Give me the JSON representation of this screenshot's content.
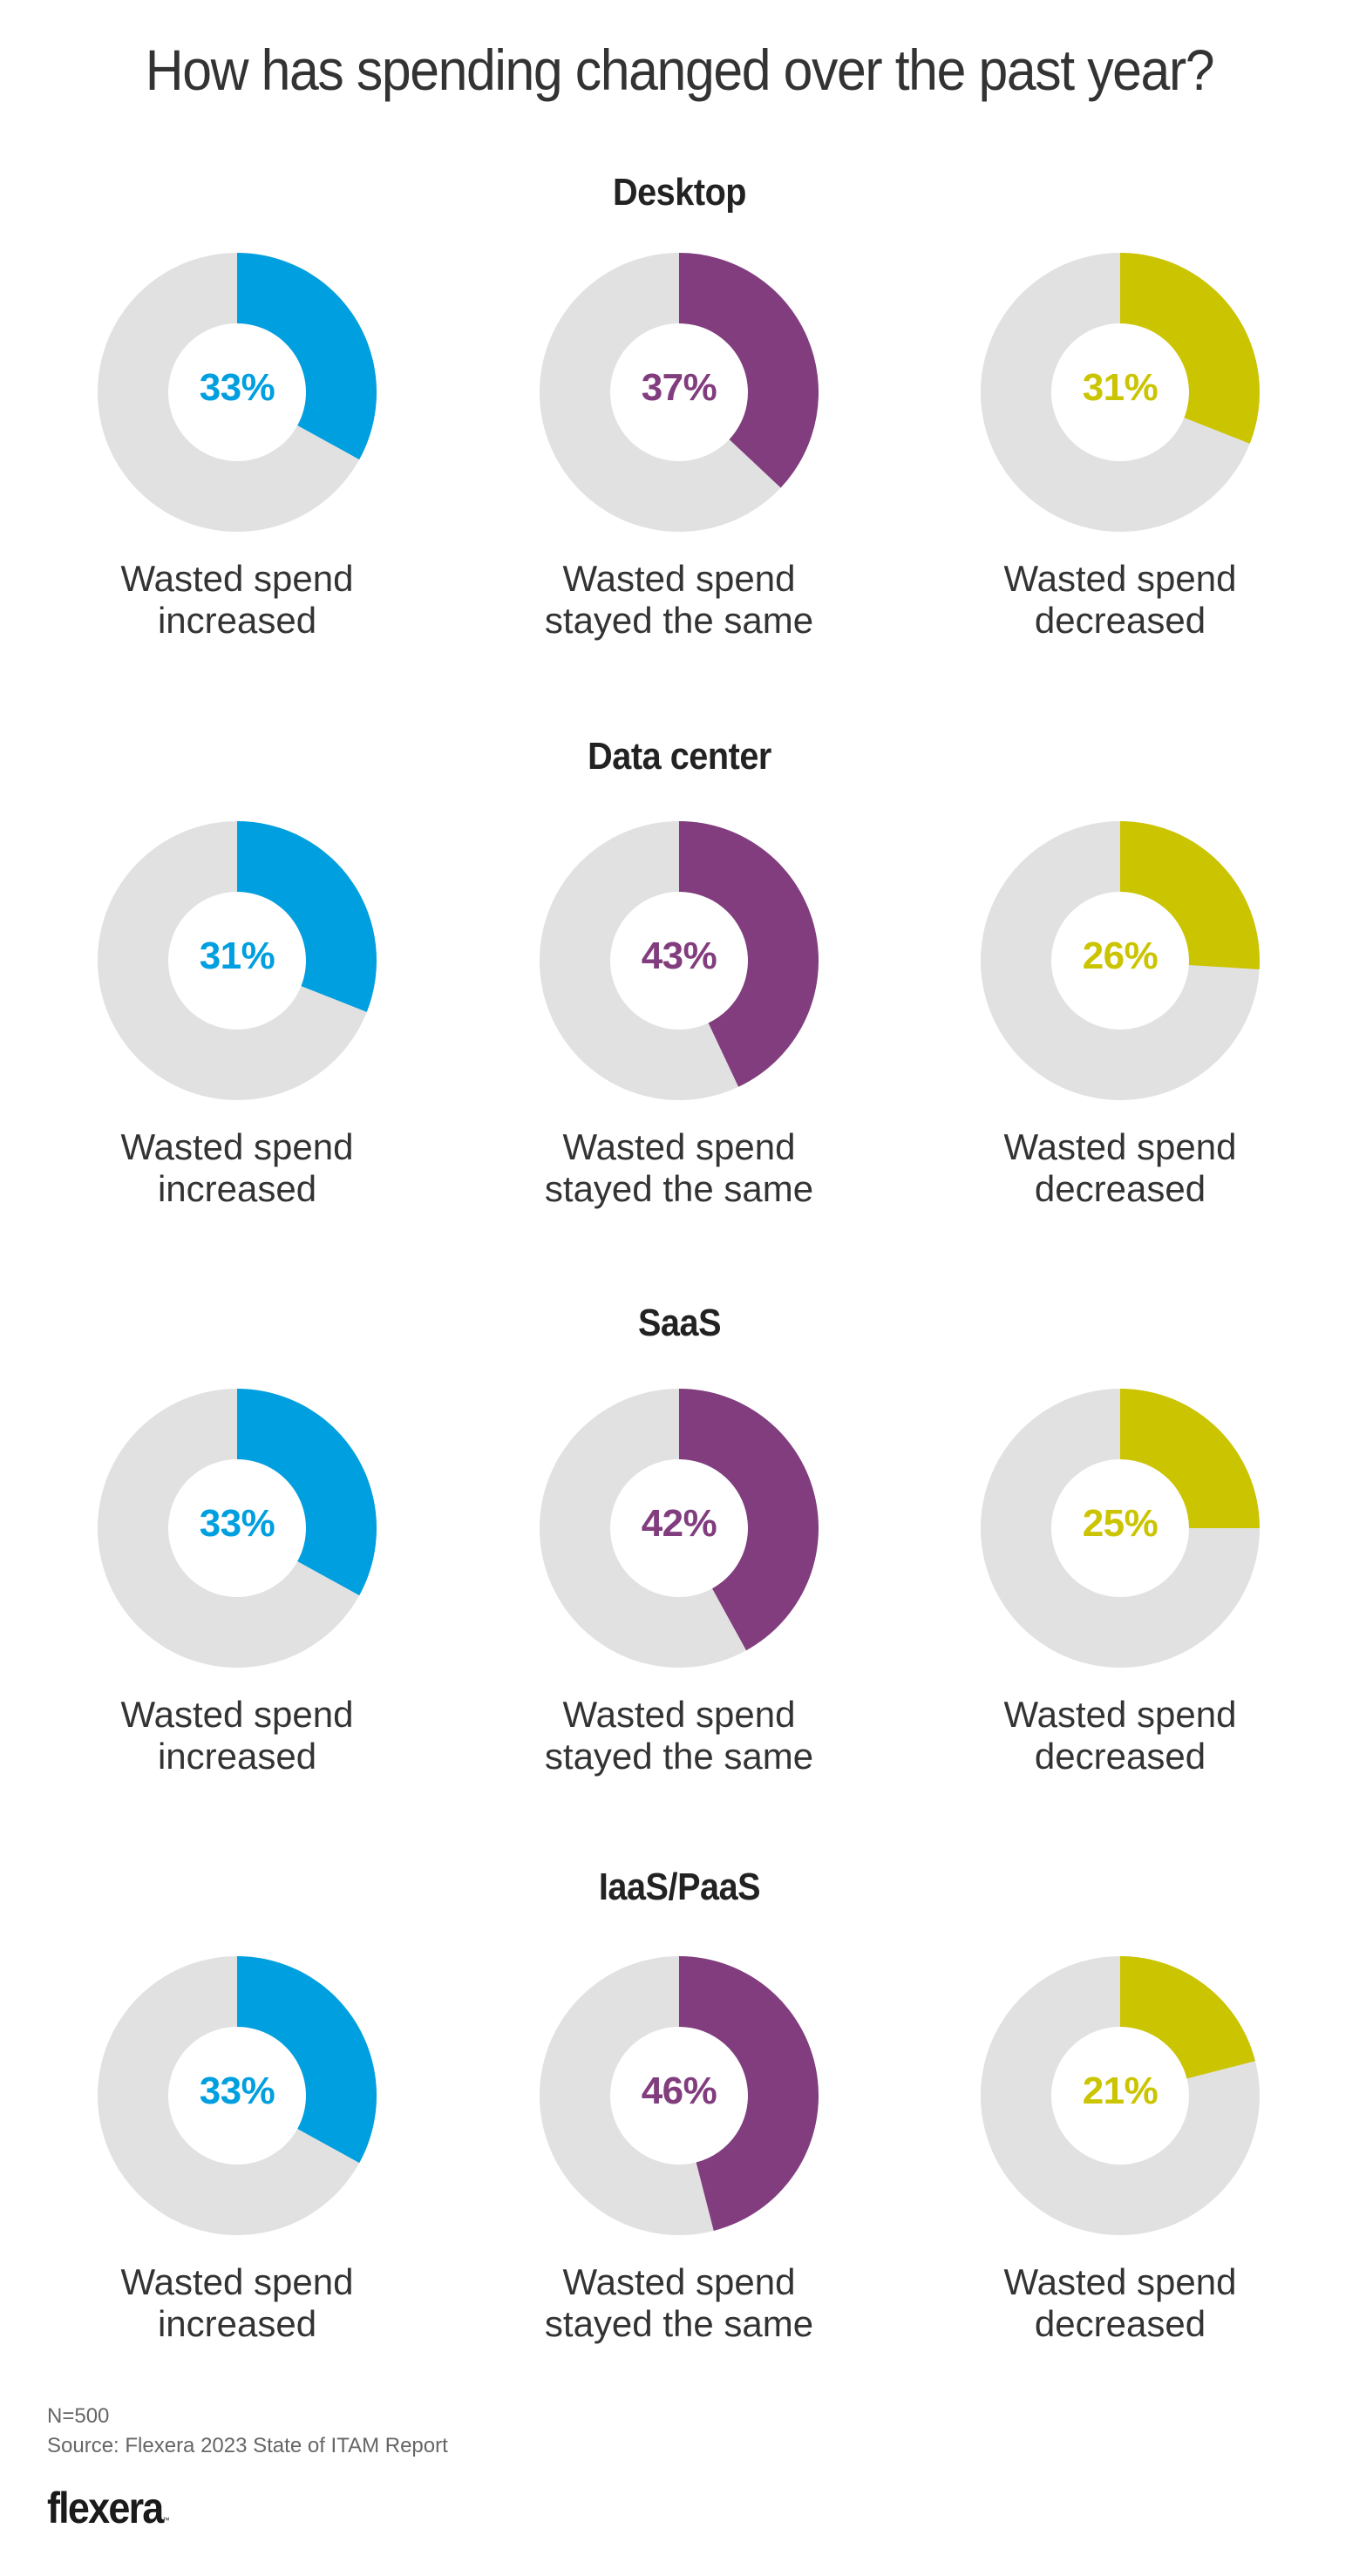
{
  "title": "How has spending changed over the past year?",
  "colors": {
    "increased": "#009fdf",
    "same": "#813d7e",
    "decreased": "#cbc400",
    "remainder": "#e1e1e1"
  },
  "chart_data": {
    "type": "pie",
    "subtype": "donut-grid",
    "title": "How has spending changed over the past year?",
    "categories": [
      "Wasted spend increased",
      "Wasted spend stayed the same",
      "Wasted spend decreased"
    ],
    "groups": [
      {
        "name": "Desktop",
        "charts": [
          {
            "label_line1": "Wasted spend",
            "label_line2": "increased",
            "value": 33,
            "display": "33%",
            "series": "increased"
          },
          {
            "label_line1": "Wasted spend",
            "label_line2": "stayed the same",
            "value": 37,
            "display": "37%",
            "series": "same"
          },
          {
            "label_line1": "Wasted spend",
            "label_line2": "decreased",
            "value": 31,
            "display": "31%",
            "series": "decreased"
          }
        ]
      },
      {
        "name": "Data center",
        "charts": [
          {
            "label_line1": "Wasted spend",
            "label_line2": "increased",
            "value": 31,
            "display": "31%",
            "series": "increased"
          },
          {
            "label_line1": "Wasted spend",
            "label_line2": "stayed the same",
            "value": 43,
            "display": "43%",
            "series": "same"
          },
          {
            "label_line1": "Wasted spend",
            "label_line2": "decreased",
            "value": 26,
            "display": "26%",
            "series": "decreased"
          }
        ]
      },
      {
        "name": "SaaS",
        "charts": [
          {
            "label_line1": "Wasted spend",
            "label_line2": "increased",
            "value": 33,
            "display": "33%",
            "series": "increased"
          },
          {
            "label_line1": "Wasted spend",
            "label_line2": "stayed the same",
            "value": 42,
            "display": "42%",
            "series": "same"
          },
          {
            "label_line1": "Wasted spend",
            "label_line2": "decreased",
            "value": 25,
            "display": "25%",
            "series": "decreased"
          }
        ]
      },
      {
        "name": "IaaS/PaaS",
        "charts": [
          {
            "label_line1": "Wasted spend",
            "label_line2": "increased",
            "value": 33,
            "display": "33%",
            "series": "increased"
          },
          {
            "label_line1": "Wasted spend",
            "label_line2": "stayed the same",
            "value": 46,
            "display": "46%",
            "series": "same"
          },
          {
            "label_line1": "Wasted spend",
            "label_line2": "decreased",
            "value": 21,
            "display": "21%",
            "series": "decreased"
          }
        ]
      }
    ]
  },
  "footer": {
    "sample_size": "N=500",
    "source": "Source: Flexera 2023 State of ITAM Report",
    "logo_text": "flexera",
    "logo_tm": "™"
  }
}
